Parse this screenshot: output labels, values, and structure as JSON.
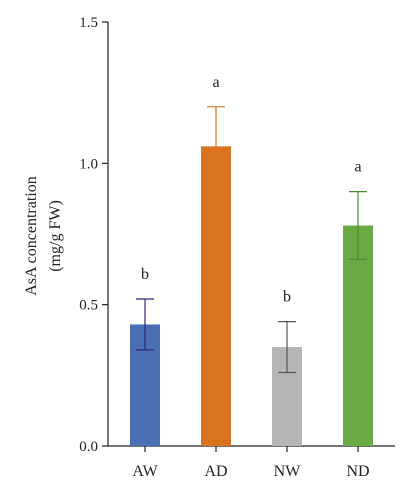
{
  "chart_data": {
    "type": "bar",
    "title": "",
    "xlabel": "",
    "ylabel_lines": [
      "AsA concentration",
      "(mg/g FW)"
    ],
    "ylim": [
      0,
      1.5
    ],
    "yticks": [
      "0.0",
      "0.5",
      "1.0",
      "1.5"
    ],
    "ytick_values": [
      0,
      0.5,
      1.0,
      1.5
    ],
    "categories": [
      "AW",
      "AD",
      "NW",
      "ND"
    ],
    "values": [
      0.43,
      1.06,
      0.35,
      0.78
    ],
    "errors": [
      0.09,
      0.14,
      0.09,
      0.12
    ],
    "significance": [
      "b",
      "a",
      "b",
      "a"
    ],
    "colors": [
      "#4a6fb5",
      "#d9731f",
      "#b5b5b5",
      "#6aaa45"
    ],
    "error_colors": [
      "#2e2a7a",
      "#d9731f",
      "#555555",
      "#4a8a30"
    ],
    "grid": false,
    "legend": "none"
  }
}
